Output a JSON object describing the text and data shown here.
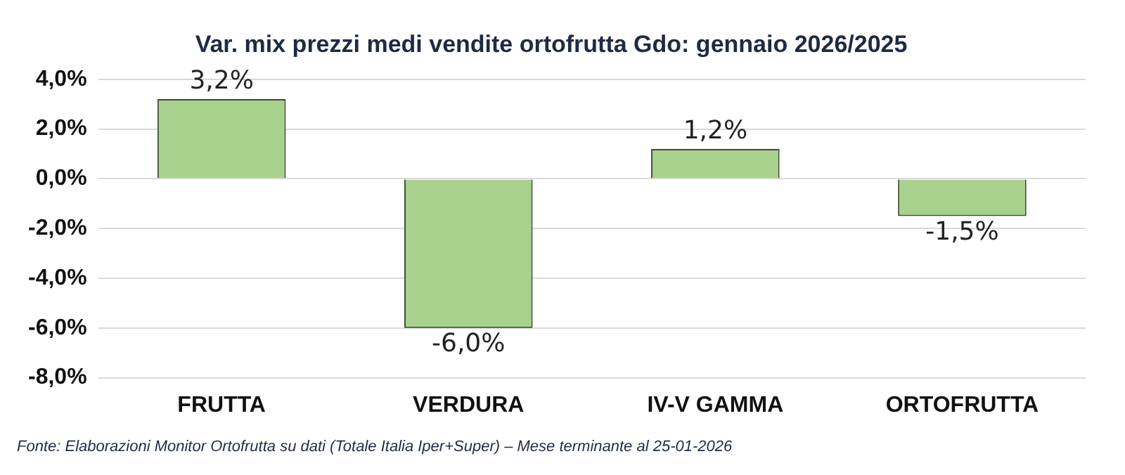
{
  "chart_data": {
    "type": "bar",
    "title": "Var. mix prezzi medi vendite ortofrutta Gdo: gennaio 2026/2025",
    "categories": [
      "FRUTTA",
      "VERDURA",
      "IV-V GAMMA",
      "ORTOFRUTTA"
    ],
    "values": [
      3.2,
      -6.0,
      1.2,
      -1.5
    ],
    "value_labels": [
      "3,2%",
      "-6,0%",
      "1,2%",
      "-1,5%"
    ],
    "color": "#a9d18e",
    "ylim": [
      -8,
      4
    ],
    "yticks": [
      {
        "value": -8,
        "label": "-8,0%"
      },
      {
        "value": -6,
        "label": "-6,0%"
      },
      {
        "value": -4,
        "label": "-4,0%"
      },
      {
        "value": -2,
        "label": "-2,0%"
      },
      {
        "value": 0,
        "label": "0,0%"
      },
      {
        "value": 2,
        "label": "2,0%"
      },
      {
        "value": 4,
        "label": "4,0%"
      }
    ],
    "grid": "y",
    "annotations": [
      "Fonte: Elaborazioni Monitor Ortofrutta su dati (Totale Italia Iper+Super) – Mese terminante al 25-01-2026"
    ]
  }
}
